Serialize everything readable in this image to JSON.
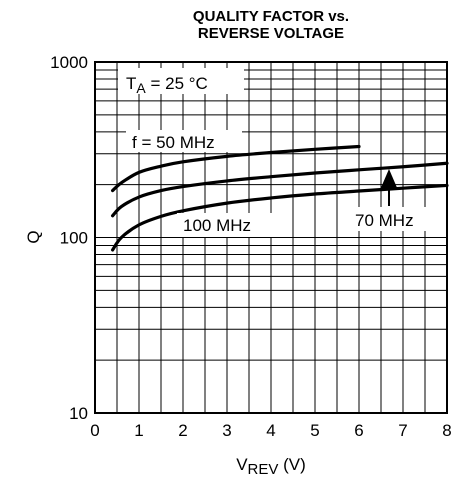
{
  "chart_data": {
    "type": "line",
    "title_line1": "QUALITY FACTOR vs.",
    "title_line2": "REVERSE VOLTAGE",
    "xlabel_main": "V",
    "xlabel_sub": "REV",
    "xlabel_unit": " (V)",
    "ylabel": "Q",
    "xlim": [
      0,
      8
    ],
    "ylim": [
      10,
      1000
    ],
    "yscale": "log",
    "grid": true,
    "x_ticks": [
      "0",
      "1",
      "2",
      "3",
      "4",
      "5",
      "6",
      "7",
      "8"
    ],
    "y_ticks": [
      {
        "value": 10,
        "label": "10"
      },
      {
        "value": 100,
        "label": "100"
      },
      {
        "value": 1000,
        "label": "1000"
      }
    ],
    "condition_main": "T",
    "condition_sub": "A",
    "condition_rest": " = 25 °C",
    "series": [
      {
        "name": "f = 50 MHz",
        "x": [
          0.4,
          0.6,
          1,
          1.5,
          2,
          3,
          4,
          5,
          6
        ],
        "y": [
          185,
          205,
          235,
          255,
          270,
          290,
          305,
          318,
          330
        ]
      },
      {
        "name": "70 MHz",
        "x": [
          0.4,
          0.6,
          1,
          1.5,
          2,
          3,
          4,
          5,
          6,
          7,
          8
        ],
        "y": [
          133,
          150,
          170,
          185,
          195,
          210,
          222,
          233,
          243,
          253,
          265
        ]
      },
      {
        "name": "100 MHz",
        "x": [
          0.4,
          0.6,
          1,
          1.5,
          2,
          3,
          4,
          5,
          6,
          7,
          8
        ],
        "y": [
          85,
          100,
          118,
          132,
          142,
          157,
          168,
          177,
          184,
          191,
          198
        ]
      }
    ]
  }
}
